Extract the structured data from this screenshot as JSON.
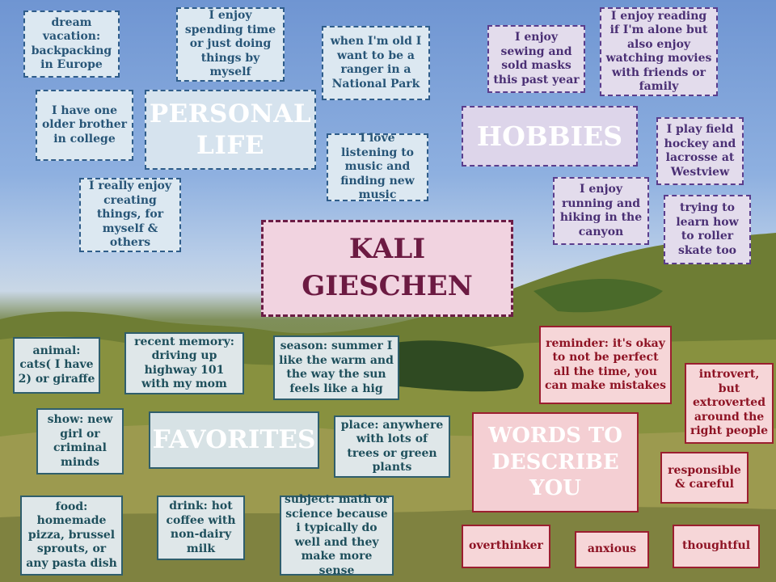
{
  "title": {
    "name": "KALI\nGIESCHEN"
  },
  "personal_life": {
    "heading": "PERSONAL LIFE",
    "items": [
      "dream vacation: backpacking in Europe",
      "I enjoy spending time or just doing things by myself",
      "when I'm old I want to be a ranger in a National Park",
      "I have one older brother in college",
      "I love listening to music and finding new music",
      "I really enjoy creating things, for myself & others"
    ]
  },
  "hobbies": {
    "heading": "HOBBIES",
    "items": [
      "I enjoy sewing and sold masks this past year",
      "I enjoy reading if I'm alone but also enjoy watching movies with friends or family",
      "I play field hockey and lacrosse at Westview",
      "I enjoy running and hiking in the canyon",
      "trying to learn how to roller skate too"
    ]
  },
  "favorites": {
    "heading": "FAVORITES",
    "items": [
      "animal: cats( I have 2) or giraffe",
      "recent memory: driving up highway 101 with my mom",
      "season: summer I like the warm and the way the sun feels like a hig",
      "show: new girl or criminal minds",
      "place: anywhere with lots of trees or green plants",
      "food: homemade pizza, brussel sprouts, or any pasta dish",
      "drink: hot coffee with non-dairy milk",
      "subject: math or science because i typically do well and they make more sense"
    ]
  },
  "words": {
    "heading": "WORDS TO DESCRIBE YOU",
    "items": [
      "reminder: it's okay to not be perfect all the time, you can make mistakes",
      "introvert, but extroverted around the right people",
      "responsible & careful",
      "overthinker",
      "anxious",
      "thoughtful"
    ]
  },
  "colors": {
    "personal": "#2f5d8a",
    "hobbies": "#5b3d8c",
    "favorites": "#2f5e6c",
    "words": "#9b1e2f",
    "name": "#6c1d46"
  }
}
